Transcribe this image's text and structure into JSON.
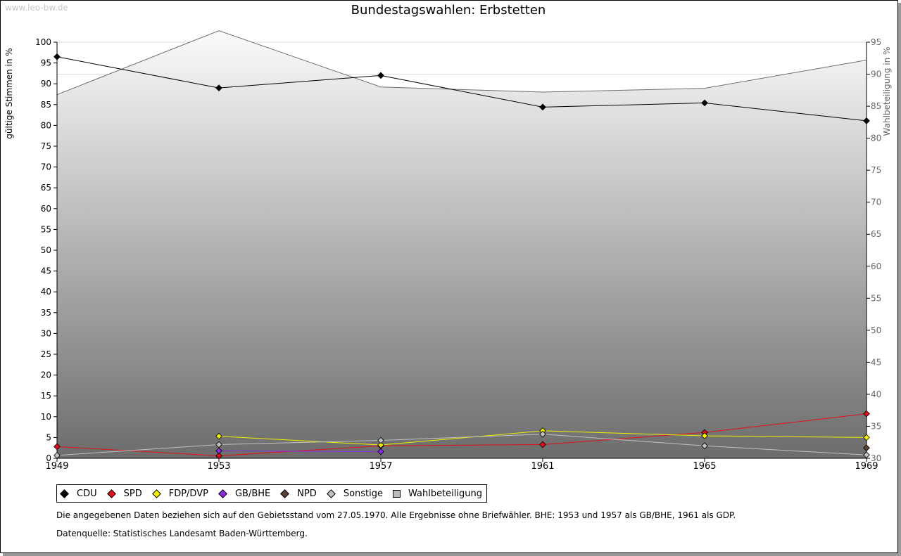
{
  "watermark": "www.leo-bw.de",
  "chart_data": {
    "type": "line",
    "title": "Bundestagswahlen: Erbstetten",
    "x": [
      "1949",
      "1953",
      "1957",
      "1961",
      "1965",
      "1969"
    ],
    "ylabel": "gültige Stimmen in %",
    "y2label": "Wahlbeteiligung in %",
    "ylim": [
      0,
      100
    ],
    "y2lim": [
      30,
      95
    ],
    "yticks": [
      0,
      5,
      10,
      15,
      20,
      25,
      30,
      35,
      40,
      45,
      50,
      55,
      60,
      65,
      70,
      75,
      80,
      85,
      90,
      95,
      100
    ],
    "y2ticks": [
      30,
      35,
      40,
      45,
      50,
      55,
      60,
      65,
      70,
      75,
      80,
      85,
      90,
      95
    ],
    "grid": true,
    "legend_placement": "bottom-left",
    "series": [
      {
        "name": "CDU",
        "color": "#000000",
        "values": [
          96.5,
          89.0,
          92.0,
          84.4,
          85.4,
          81.1
        ]
      },
      {
        "name": "SPD",
        "color": "#e0101a",
        "values": [
          2.8,
          0.6,
          3.0,
          3.3,
          6.2,
          10.7
        ]
      },
      {
        "name": "FDP/DVP",
        "color": "#f2f000",
        "values": [
          null,
          5.3,
          3.2,
          6.6,
          5.4,
          5.0
        ]
      },
      {
        "name": "GB/BHE",
        "color": "#8a2be2",
        "values": [
          null,
          1.8,
          1.6,
          null,
          null,
          null
        ]
      },
      {
        "name": "NPD",
        "color": "#5c4033",
        "values": [
          null,
          null,
          null,
          null,
          null,
          2.5
        ]
      },
      {
        "name": "Sonstige",
        "color": "#c0c0c0",
        "values": [
          0.7,
          3.3,
          4.3,
          5.8,
          3.0,
          0.8
        ]
      }
    ],
    "turnout": {
      "name": "Wahlbeteiligung",
      "axis": "right",
      "type": "area",
      "values": [
        86.8,
        96.8,
        88.0,
        87.2,
        87.8,
        92.2
      ]
    }
  },
  "note": "Die angegebenen Daten beziehen sich auf den Gebietsstand vom 27.05.1970. Alle Ergebnisse ohne Briefwähler. BHE: 1953 und 1957 als GB/BHE, 1961 als GDP.",
  "source": "Datenquelle: Statistisches Landesamt Baden-Württemberg."
}
